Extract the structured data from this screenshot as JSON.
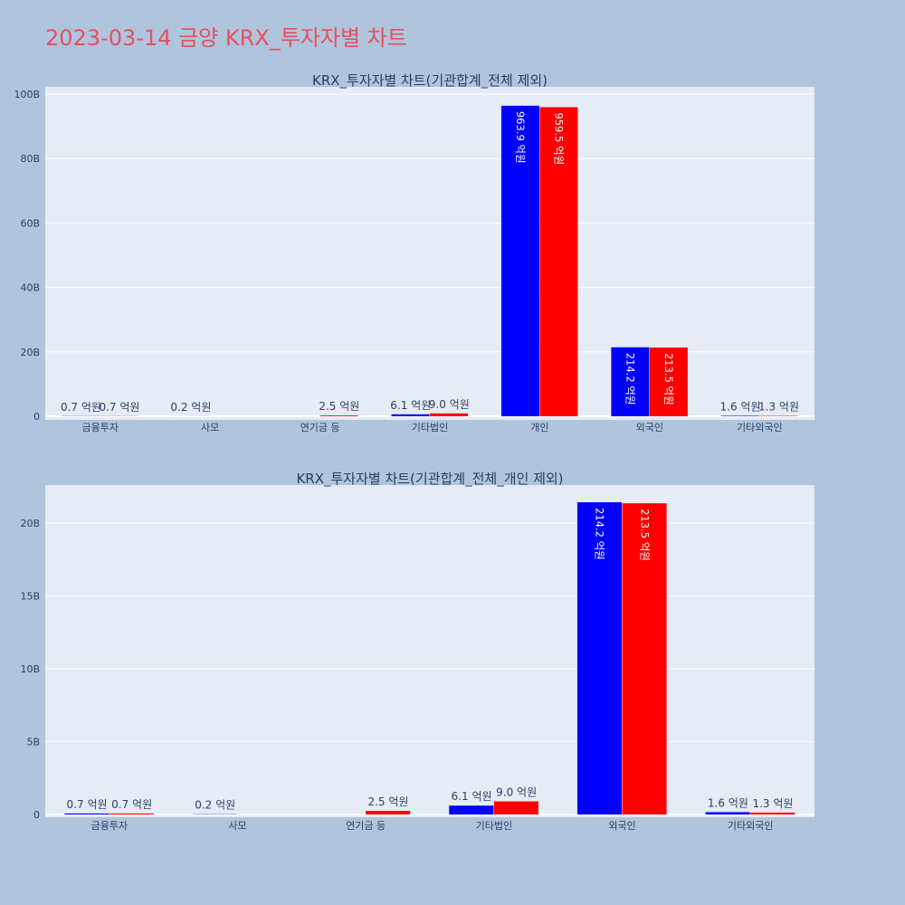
{
  "title": "2023-03-14 금양 KRX_투자자별 차트",
  "colors": {
    "buy": "#0000ff",
    "sell": "#ff0000",
    "plot_bg": "#e5ecf6",
    "page_bg": "#b0c4de",
    "title": "#e8505b"
  },
  "chart_data": [
    {
      "type": "bar",
      "title": "KRX_투자자별 차트(기관합계_전체 제외)",
      "categories": [
        "금융투자",
        "사모",
        "연기금 등",
        "기타법인",
        "개인",
        "외국인",
        "기타외국인"
      ],
      "series": [
        {
          "values": [
            0.07,
            0.02,
            0,
            0.61,
            96.39,
            21.42,
            0.16
          ],
          "labels": [
            "0.7 억원",
            "0.2 억원",
            "",
            "6.1 억원",
            "963.9 억원",
            "214.2 억원",
            "1.6 억원"
          ]
        },
        {
          "values": [
            0.07,
            0,
            0.25,
            0.9,
            95.95,
            21.35,
            0.13
          ],
          "labels": [
            "0.7 억원",
            "",
            "2.5 억원",
            "9.0 억원",
            "959.5 억원",
            "213.5 억원",
            "1.3 억원"
          ]
        }
      ],
      "ylim": [
        0,
        100
      ],
      "yticks": [
        0,
        20,
        40,
        60,
        80,
        100
      ],
      "ytick_labels": [
        "0",
        "20B",
        "40B",
        "60B",
        "80B",
        "100B"
      ],
      "grid": true
    },
    {
      "type": "bar",
      "title": "KRX_투자자별 차트(기관합계_전체_개인 제외)",
      "categories": [
        "금융투자",
        "사모",
        "연기금 등",
        "기타법인",
        "외국인",
        "기타외국인"
      ],
      "series": [
        {
          "values": [
            0.07,
            0.02,
            0,
            0.61,
            21.42,
            0.16
          ],
          "labels": [
            "0.7 억원",
            "0.2 억원",
            "",
            "6.1 억원",
            "214.2 억원",
            "1.6 억원"
          ]
        },
        {
          "values": [
            0.07,
            0,
            0.25,
            0.9,
            21.35,
            0.13
          ],
          "labels": [
            "0.7 억원",
            "",
            "2.5 억원",
            "9.0 억원",
            "213.5 억원",
            "1.3 억원"
          ]
        }
      ],
      "ylim": [
        0,
        22.6
      ],
      "yticks": [
        0,
        5,
        10,
        15,
        20
      ],
      "ytick_labels": [
        "0",
        "5B",
        "10B",
        "15B",
        "20B"
      ],
      "grid": true
    }
  ]
}
